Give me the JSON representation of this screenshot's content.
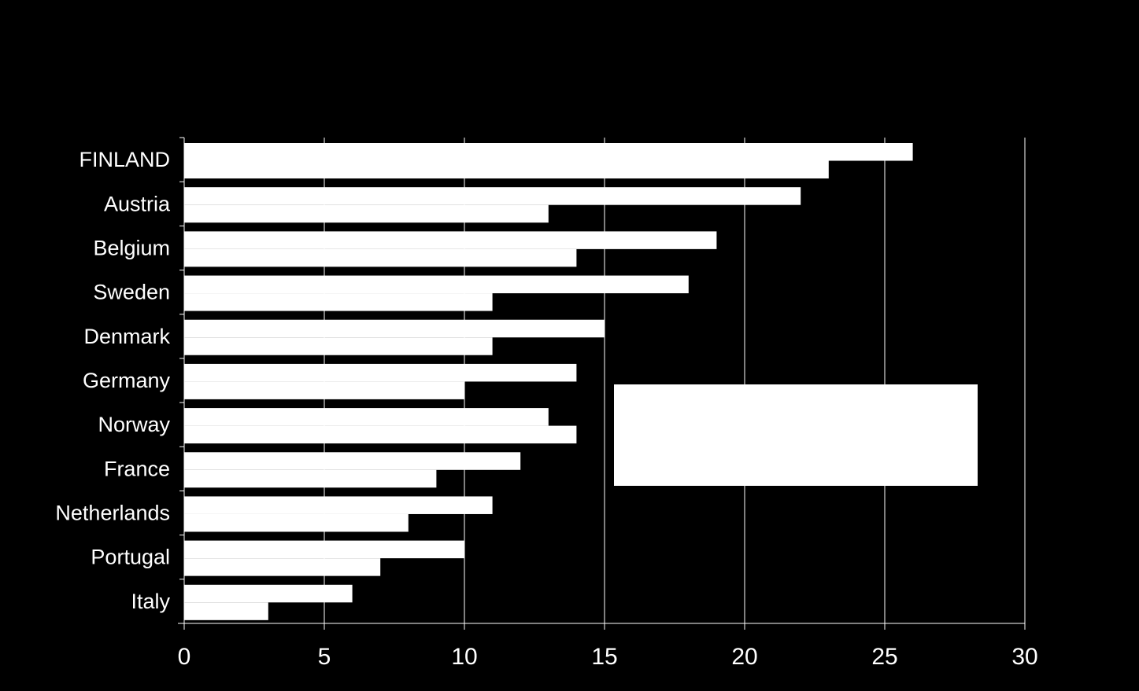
{
  "chart_data": {
    "type": "bar",
    "orientation": "horizontal",
    "categories": [
      "FINLAND",
      "Austria",
      "Belgium",
      "Sweden",
      "Denmark",
      "Germany",
      "Norway",
      "France",
      "Netherlands",
      "Portugal",
      "Italy"
    ],
    "series": [
      {
        "values": [
          26,
          22,
          19,
          18,
          15,
          14,
          13,
          12,
          11,
          10,
          6
        ]
      },
      {
        "values": [
          23,
          13,
          14,
          11,
          11,
          10,
          14,
          9,
          8,
          7,
          3
        ]
      }
    ],
    "xlim": [
      0,
      30
    ],
    "xticks": [
      "0",
      "5",
      "10",
      "15",
      "20",
      "25",
      "30"
    ],
    "grid": true,
    "legend": "middle-right",
    "colors": {
      "background": "#000000",
      "bars": "#ffffff",
      "grid": "#ffffff",
      "text": "#ffffff"
    }
  }
}
